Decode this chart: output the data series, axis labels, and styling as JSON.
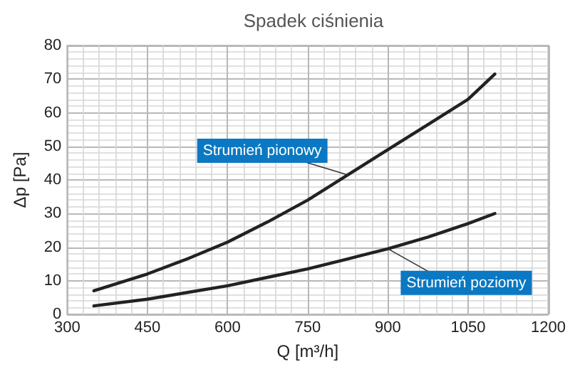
{
  "chart_data": {
    "type": "line",
    "title": "Spadek ciśnienia",
    "xlabel": "Q [m³/h]",
    "ylabel": "Δp [Pa]",
    "x": [
      350,
      450,
      525,
      600,
      675,
      750,
      825,
      900,
      975,
      1050,
      1100
    ],
    "series": [
      {
        "name": "Strumień pionowy",
        "color": "#222222",
        "values": [
          7,
          12,
          16.5,
          21.5,
          27.5,
          34,
          41.5,
          49,
          56.5,
          64,
          71.5
        ]
      },
      {
        "name": "Strumień poziomy",
        "color": "#222222",
        "values": [
          2.5,
          4.5,
          6.5,
          8.5,
          11,
          13.5,
          16.5,
          19.5,
          23,
          27,
          30
        ]
      }
    ],
    "xlim": [
      300,
      1200
    ],
    "xticks": [
      300,
      450,
      600,
      750,
      900,
      1050,
      1200
    ],
    "ylim": [
      0,
      80
    ],
    "yticks": [
      0,
      10,
      20,
      30,
      40,
      50,
      60,
      70,
      80
    ],
    "grid": true,
    "legend": false,
    "marker": "none",
    "line_style": "solid"
  }
}
